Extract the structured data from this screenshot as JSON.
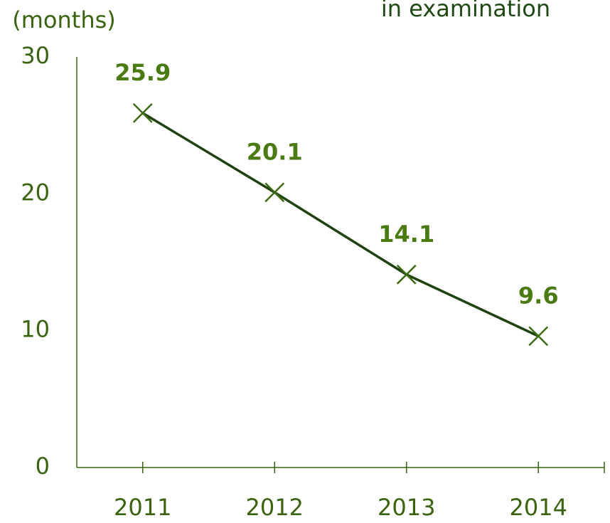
{
  "chart_data": {
    "type": "line",
    "title": "in examination",
    "y_label": "(months)",
    "categories": [
      "2011",
      "2012",
      "2013",
      "2014"
    ],
    "series": [
      {
        "name": "months",
        "color": "#1f4210",
        "marker_color": "#3d6b12",
        "values": [
          25.9,
          20.1,
          14.1,
          9.6
        ]
      }
    ],
    "ylim": [
      0,
      30
    ],
    "yticks": [
      0,
      10,
      20,
      30
    ],
    "grid": false
  }
}
